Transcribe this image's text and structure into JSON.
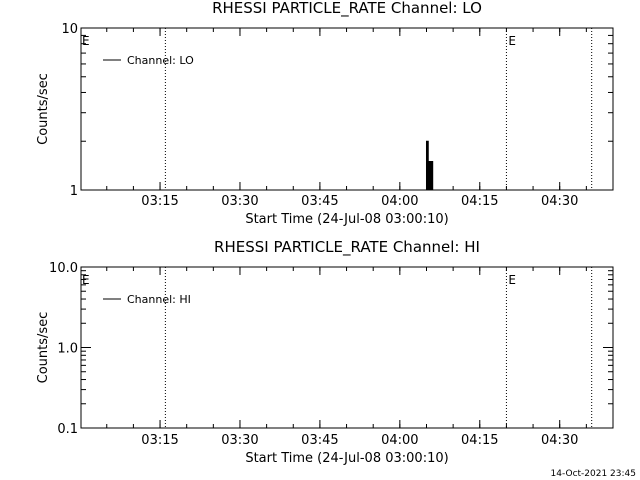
{
  "footer": {
    "timestamp": "14-Oct-2021 23:45"
  },
  "chart_data": [
    {
      "type": "line",
      "title": "RHESSI PARTICLE_RATE Channel: LO",
      "xlabel": "Start Time (24-Jul-08 03:00:10)",
      "ylabel": "Counts/sec",
      "y_scale": "log",
      "ylim": [
        1,
        10
      ],
      "xlim": [
        "03:00:10",
        "04:40:00"
      ],
      "x_ticks": [
        "03:15",
        "03:30",
        "03:45",
        "04:00",
        "04:15",
        "04:30"
      ],
      "y_ticks": [
        "1",
        "10"
      ],
      "legend": {
        "entries": [
          "Channel: LO"
        ],
        "position": "top-left"
      },
      "event_markers": [
        {
          "time": "03:16",
          "label": ""
        },
        {
          "time": "04:20",
          "label": "E"
        },
        {
          "time": "04:36",
          "label": ""
        }
      ],
      "edge_labels": [
        "E"
      ],
      "series": [
        {
          "name": "Channel: LO",
          "x": [
            "04:04:50",
            "04:05:00",
            "04:05:10",
            "04:05:20",
            "04:05:30",
            "04:05:40",
            "04:05:50",
            "04:06:00",
            "04:06:10"
          ],
          "y": [
            1,
            2,
            2,
            1,
            1.5,
            1.5,
            1,
            1.5,
            1
          ]
        }
      ]
    },
    {
      "type": "line",
      "title": "RHESSI PARTICLE_RATE Channel: HI",
      "xlabel": "Start Time (24-Jul-08 03:00:10)",
      "ylabel": "Counts/sec",
      "y_scale": "log",
      "ylim": [
        0.1,
        10
      ],
      "xlim": [
        "03:00:10",
        "04:40:00"
      ],
      "x_ticks": [
        "03:15",
        "03:30",
        "03:45",
        "04:00",
        "04:15",
        "04:30"
      ],
      "y_ticks": [
        "0.1",
        "1.0",
        "10.0"
      ],
      "legend": {
        "entries": [
          "Channel: HI"
        ],
        "position": "top-left"
      },
      "event_markers": [
        {
          "time": "03:16",
          "label": ""
        },
        {
          "time": "04:20",
          "label": "E"
        },
        {
          "time": "04:36",
          "label": ""
        }
      ],
      "edge_labels": [
        "E"
      ],
      "series": [
        {
          "name": "Channel: HI",
          "x": [],
          "y": []
        }
      ]
    }
  ]
}
